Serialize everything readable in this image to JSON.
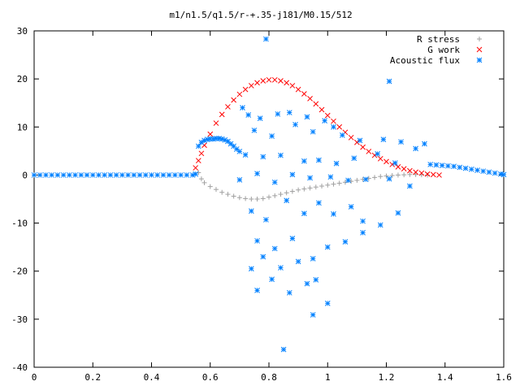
{
  "chart_data": {
    "type": "scatter",
    "title": "m1/n1.5/q1.5/r-+.35-j181/M0.15/512",
    "xlabel": "",
    "ylabel": "",
    "xlim": [
      0,
      1.6
    ],
    "ylim": [
      -40,
      30
    ],
    "x_ticks": [
      0,
      0.2,
      0.4,
      0.6,
      0.8,
      1,
      1.2,
      1.4,
      1.6
    ],
    "x_tick_labels": [
      "0",
      "0.2",
      "0.4",
      "0.6",
      "0.8",
      "1",
      "1.2",
      "1.4",
      "1.6"
    ],
    "y_ticks": [
      -40,
      -30,
      -20,
      -10,
      0,
      10,
      20,
      30
    ],
    "y_tick_labels": [
      "-40",
      "-30",
      "-20",
      "-10",
      "0",
      "10",
      "20",
      "30"
    ],
    "grid": false,
    "legend_position": "top-right",
    "series": [
      {
        "name": "R stress",
        "marker": "+",
        "color": "#a0a0a0",
        "points": [
          [
            0.56,
            0.5
          ],
          [
            0.57,
            -0.8
          ],
          [
            0.58,
            -1.6
          ],
          [
            0.6,
            -2.4
          ],
          [
            0.62,
            -3.0
          ],
          [
            0.64,
            -3.6
          ],
          [
            0.66,
            -4.0
          ],
          [
            0.68,
            -4.4
          ],
          [
            0.7,
            -4.7
          ],
          [
            0.72,
            -4.9
          ],
          [
            0.74,
            -5.0
          ],
          [
            0.76,
            -5.0
          ],
          [
            0.78,
            -4.9
          ],
          [
            0.8,
            -4.6
          ],
          [
            0.82,
            -4.3
          ],
          [
            0.84,
            -4.0
          ],
          [
            0.86,
            -3.7
          ],
          [
            0.88,
            -3.4
          ],
          [
            0.9,
            -3.1
          ],
          [
            0.92,
            -2.9
          ],
          [
            0.94,
            -2.7
          ],
          [
            0.96,
            -2.5
          ],
          [
            0.98,
            -2.3
          ],
          [
            1.0,
            -2.1
          ],
          [
            1.02,
            -1.9
          ],
          [
            1.04,
            -1.7
          ],
          [
            1.06,
            -1.5
          ],
          [
            1.08,
            -1.3
          ],
          [
            1.1,
            -1.1
          ],
          [
            1.12,
            -0.9
          ],
          [
            1.14,
            -0.7
          ],
          [
            1.16,
            -0.5
          ],
          [
            1.18,
            -0.3
          ],
          [
            1.2,
            -0.2
          ],
          [
            1.22,
            -0.1
          ],
          [
            1.24,
            0.0
          ],
          [
            1.26,
            0.05
          ],
          [
            1.28,
            0.1
          ],
          [
            1.3,
            0.1
          ],
          [
            1.32,
            0.05
          ],
          [
            1.34,
            0.0
          ]
        ]
      },
      {
        "name": "G work",
        "marker": "x",
        "color": "#ff0000",
        "points": [
          [
            0.55,
            1.5
          ],
          [
            0.56,
            3.0
          ],
          [
            0.57,
            4.5
          ],
          [
            0.58,
            6.2
          ],
          [
            0.6,
            8.5
          ],
          [
            0.62,
            10.8
          ],
          [
            0.64,
            12.6
          ],
          [
            0.66,
            14.2
          ],
          [
            0.68,
            15.6
          ],
          [
            0.7,
            16.8
          ],
          [
            0.72,
            17.8
          ],
          [
            0.74,
            18.6
          ],
          [
            0.76,
            19.2
          ],
          [
            0.78,
            19.6
          ],
          [
            0.8,
            19.8
          ],
          [
            0.82,
            19.8
          ],
          [
            0.84,
            19.6
          ],
          [
            0.86,
            19.2
          ],
          [
            0.88,
            18.6
          ],
          [
            0.9,
            17.8
          ],
          [
            0.92,
            16.9
          ],
          [
            0.94,
            15.9
          ],
          [
            0.96,
            14.8
          ],
          [
            0.98,
            13.6
          ],
          [
            1.0,
            12.4
          ],
          [
            1.02,
            11.2
          ],
          [
            1.04,
            10.0
          ],
          [
            1.06,
            8.9
          ],
          [
            1.08,
            7.8
          ],
          [
            1.1,
            6.8
          ],
          [
            1.12,
            5.8
          ],
          [
            1.14,
            4.9
          ],
          [
            1.16,
            4.1
          ],
          [
            1.18,
            3.4
          ],
          [
            1.2,
            2.8
          ],
          [
            1.22,
            2.2
          ],
          [
            1.24,
            1.7
          ],
          [
            1.26,
            1.3
          ],
          [
            1.28,
            0.9
          ],
          [
            1.3,
            0.6
          ],
          [
            1.32,
            0.4
          ],
          [
            1.34,
            0.2
          ],
          [
            1.36,
            0.1
          ],
          [
            1.38,
            0.0
          ]
        ]
      },
      {
        "name": "Acoustic flux",
        "marker": "*",
        "color": "#0080ff",
        "points": [
          [
            0.0,
            0
          ],
          [
            0.02,
            0
          ],
          [
            0.04,
            0
          ],
          [
            0.06,
            0
          ],
          [
            0.08,
            0
          ],
          [
            0.1,
            0
          ],
          [
            0.12,
            0
          ],
          [
            0.14,
            0
          ],
          [
            0.16,
            0
          ],
          [
            0.18,
            0
          ],
          [
            0.2,
            0
          ],
          [
            0.22,
            0
          ],
          [
            0.24,
            0
          ],
          [
            0.26,
            0
          ],
          [
            0.28,
            0
          ],
          [
            0.3,
            0
          ],
          [
            0.32,
            0
          ],
          [
            0.34,
            0
          ],
          [
            0.36,
            0
          ],
          [
            0.38,
            0
          ],
          [
            0.4,
            0
          ],
          [
            0.42,
            0
          ],
          [
            0.44,
            0
          ],
          [
            0.46,
            0
          ],
          [
            0.48,
            0
          ],
          [
            0.5,
            0
          ],
          [
            0.52,
            0
          ],
          [
            0.54,
            0
          ],
          [
            0.55,
            0.2
          ],
          [
            0.56,
            6.0
          ],
          [
            0.57,
            6.8
          ],
          [
            0.58,
            7.2
          ],
          [
            0.59,
            7.4
          ],
          [
            0.6,
            7.5
          ],
          [
            0.61,
            7.5
          ],
          [
            0.62,
            7.6
          ],
          [
            0.63,
            7.6
          ],
          [
            0.64,
            7.5
          ],
          [
            0.65,
            7.3
          ],
          [
            0.66,
            7.0
          ],
          [
            0.67,
            6.5
          ],
          [
            0.68,
            6.0
          ],
          [
            0.69,
            5.4
          ],
          [
            0.7,
            4.9
          ],
          [
            1.35,
            2.2
          ],
          [
            1.37,
            2.1
          ],
          [
            1.39,
            2.0
          ],
          [
            1.41,
            1.9
          ],
          [
            1.43,
            1.8
          ],
          [
            1.45,
            1.6
          ],
          [
            1.47,
            1.4
          ],
          [
            1.49,
            1.2
          ],
          [
            1.51,
            1.0
          ],
          [
            1.53,
            0.8
          ],
          [
            1.55,
            0.6
          ],
          [
            1.57,
            0.4
          ],
          [
            1.59,
            0.2
          ],
          [
            1.6,
            0.1
          ],
          [
            0.79,
            28.3
          ],
          [
            1.21,
            19.5
          ],
          [
            0.71,
            14.0
          ],
          [
            0.73,
            12.5
          ],
          [
            0.77,
            11.8
          ],
          [
            0.83,
            12.7
          ],
          [
            0.87,
            13.0
          ],
          [
            0.93,
            12.1
          ],
          [
            0.99,
            11.3
          ],
          [
            1.02,
            10.0
          ],
          [
            0.75,
            9.3
          ],
          [
            0.81,
            8.1
          ],
          [
            0.89,
            10.5
          ],
          [
            0.95,
            9.0
          ],
          [
            1.05,
            8.3
          ],
          [
            1.11,
            7.2
          ],
          [
            1.19,
            7.4
          ],
          [
            1.25,
            6.9
          ],
          [
            1.3,
            5.5
          ],
          [
            1.33,
            6.5
          ],
          [
            0.72,
            4.2
          ],
          [
            0.78,
            3.8
          ],
          [
            0.84,
            4.1
          ],
          [
            0.92,
            2.9
          ],
          [
            0.97,
            3.1
          ],
          [
            1.03,
            2.4
          ],
          [
            1.09,
            3.5
          ],
          [
            1.17,
            4.4
          ],
          [
            1.23,
            2.5
          ],
          [
            0.7,
            -1.0
          ],
          [
            0.76,
            0.3
          ],
          [
            0.82,
            -1.5
          ],
          [
            0.88,
            0.1
          ],
          [
            0.94,
            -0.6
          ],
          [
            1.01,
            -0.4
          ],
          [
            1.07,
            -1.1
          ],
          [
            1.13,
            -0.9
          ],
          [
            1.21,
            -0.8
          ],
          [
            1.28,
            -2.3
          ],
          [
            0.74,
            -7.5
          ],
          [
            0.79,
            -9.3
          ],
          [
            0.86,
            -5.3
          ],
          [
            0.92,
            -8.0
          ],
          [
            0.97,
            -5.8
          ],
          [
            1.02,
            -8.1
          ],
          [
            1.08,
            -6.6
          ],
          [
            1.12,
            -9.6
          ],
          [
            1.18,
            -10.4
          ],
          [
            1.24,
            -7.9
          ],
          [
            0.76,
            -13.7
          ],
          [
            0.82,
            -15.3
          ],
          [
            0.88,
            -13.2
          ],
          [
            0.95,
            -17.4
          ],
          [
            1.0,
            -15.0
          ],
          [
            1.06,
            -13.9
          ],
          [
            1.12,
            -12.0
          ],
          [
            0.74,
            -19.5
          ],
          [
            0.78,
            -17.0
          ],
          [
            0.84,
            -19.3
          ],
          [
            0.9,
            -18.0
          ],
          [
            0.96,
            -21.8
          ],
          [
            0.76,
            -24.0
          ],
          [
            0.81,
            -21.7
          ],
          [
            0.87,
            -24.5
          ],
          [
            0.93,
            -22.6
          ],
          [
            0.95,
            -29.1
          ],
          [
            1.0,
            -26.7
          ],
          [
            0.85,
            -36.3
          ]
        ]
      }
    ]
  },
  "colors": {
    "r_stress": "#a0a0a0",
    "g_work": "#ff0000",
    "acoustic_flux": "#0080ff"
  }
}
